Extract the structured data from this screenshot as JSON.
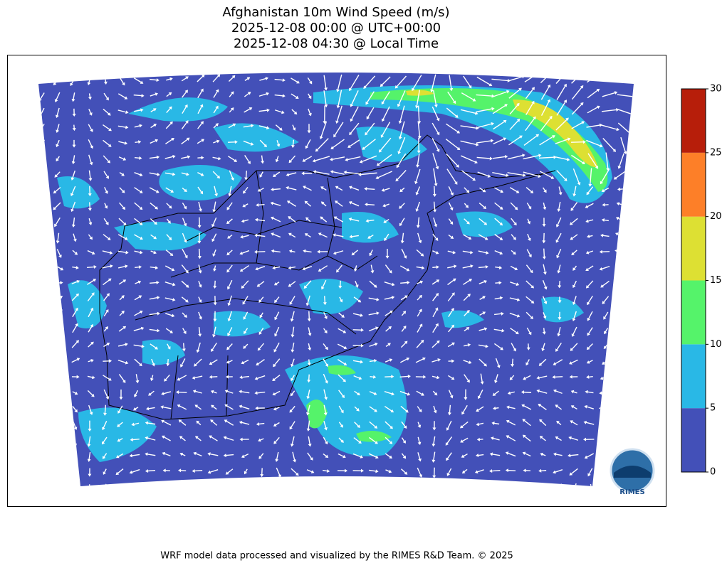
{
  "title": [
    "Afghanistan 10m Wind Speed (m/s)",
    "2025-12-08 00:00 @ UTC+00:00",
    "2025-12-08 04:30 @ Local Time"
  ],
  "colorbar": {
    "ticks": [
      0,
      5,
      10,
      15,
      20,
      25,
      30
    ],
    "colors": [
      "#4350b8",
      "#29b8e6",
      "#55f36a",
      "#dde033",
      "#fd7f28",
      "#b71e0a"
    ]
  },
  "logo": "RIMES",
  "footer": "WRF model data processed and visualized by the RIMES R&D Team. © 2025"
}
